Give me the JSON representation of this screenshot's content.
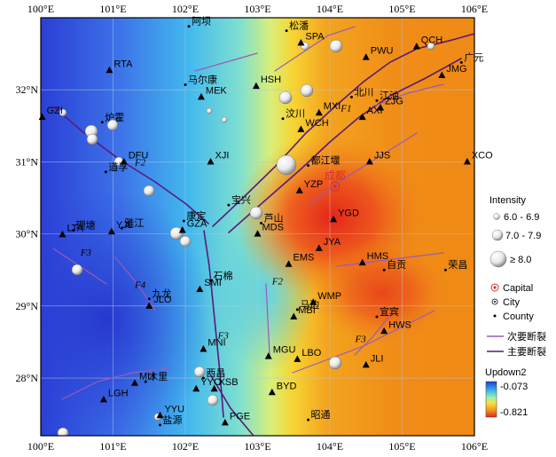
{
  "colors": {
    "fault_primary": "#5a1a7a",
    "fault_secondary": "#9a5ab8",
    "station_marker": "#000000",
    "capital_marker": "#d9302b",
    "scale_top": "#1f3cd9",
    "scale_bottom": "#e0281c"
  },
  "axes": {
    "x_ticks": [
      "100°E",
      "101°E",
      "102°E",
      "103°E",
      "104°E",
      "105°E",
      "106°E"
    ],
    "y_ticks": [
      "32°N",
      "31°N",
      "30°N",
      "29°N",
      "28°N"
    ]
  },
  "stations": [
    {
      "code": "QCH",
      "lon": 105.2,
      "lat": 32.6
    },
    {
      "code": "SPA",
      "lon": 103.6,
      "lat": 32.65
    },
    {
      "code": "PWU",
      "lon": 104.5,
      "lat": 32.45
    },
    {
      "code": "JMG",
      "lon": 105.55,
      "lat": 32.2
    },
    {
      "code": "RTA",
      "lon": 100.95,
      "lat": 32.27
    },
    {
      "code": "HSH",
      "lon": 102.98,
      "lat": 32.05
    },
    {
      "code": "MEK",
      "lon": 102.22,
      "lat": 31.9
    },
    {
      "code": "MXI",
      "lon": 103.85,
      "lat": 31.68
    },
    {
      "code": "ZJG",
      "lon": 104.7,
      "lat": 31.75
    },
    {
      "code": "GZI",
      "lon": 100.02,
      "lat": 31.62
    },
    {
      "code": "AXI",
      "lon": 104.45,
      "lat": 31.62
    },
    {
      "code": "WCH",
      "lon": 103.6,
      "lat": 31.45
    },
    {
      "code": "JJS",
      "lon": 104.55,
      "lat": 31.0
    },
    {
      "code": "XCO",
      "lon": 105.9,
      "lat": 31.0
    },
    {
      "code": "DFU",
      "lon": 101.15,
      "lat": 31.0
    },
    {
      "code": "XJI",
      "lon": 102.35,
      "lat": 31.0
    },
    {
      "code": "YZP",
      "lon": 103.58,
      "lat": 30.6
    },
    {
      "code": "YGD",
      "lon": 104.05,
      "lat": 30.2
    },
    {
      "code": "LTA",
      "lon": 100.3,
      "lat": 29.99
    },
    {
      "code": "YJL",
      "lon": 100.98,
      "lat": 30.03
    },
    {
      "code": "GZA",
      "lon": 101.96,
      "lat": 30.05
    },
    {
      "code": "MDS",
      "lon": 103.0,
      "lat": 30.0
    },
    {
      "code": "JYA",
      "lon": 103.85,
      "lat": 29.8
    },
    {
      "code": "EMS",
      "lon": 103.43,
      "lat": 29.58
    },
    {
      "code": "HMS",
      "lon": 104.45,
      "lat": 29.6
    },
    {
      "code": "JLO",
      "lon": 101.5,
      "lat": 29.0
    },
    {
      "code": "SMI",
      "lon": 102.2,
      "lat": 29.23
    },
    {
      "code": "WMP",
      "lon": 103.77,
      "lat": 29.05
    },
    {
      "code": "MBI",
      "lon": 103.5,
      "lat": 28.85
    },
    {
      "code": "HWS",
      "lon": 104.75,
      "lat": 28.65
    },
    {
      "code": "MNI",
      "lon": 102.25,
      "lat": 28.4
    },
    {
      "code": "MGU",
      "lon": 103.15,
      "lat": 28.3
    },
    {
      "code": "LBO",
      "lon": 103.55,
      "lat": 28.26
    },
    {
      "code": "JLI",
      "lon": 104.5,
      "lat": 28.18
    },
    {
      "code": "MLI",
      "lon": 101.3,
      "lat": 27.93
    },
    {
      "code": "YYO",
      "lon": 102.15,
      "lat": 27.85
    },
    {
      "code": "XSB",
      "lon": 102.4,
      "lat": 27.85
    },
    {
      "code": "LGH",
      "lon": 100.87,
      "lat": 27.7
    },
    {
      "code": "BYD",
      "lon": 103.2,
      "lat": 27.8
    },
    {
      "code": "YYU",
      "lon": 101.65,
      "lat": 27.48
    },
    {
      "code": "PGE",
      "lon": 102.55,
      "lat": 27.38
    }
  ],
  "places": [
    {
      "name": "阿坝",
      "lon": 102.05,
      "lat": 32.88
    },
    {
      "name": "松潘",
      "lon": 103.4,
      "lat": 32.82
    },
    {
      "name": "广元",
      "lon": 105.82,
      "lat": 32.38
    },
    {
      "name": "马尔康",
      "lon": 102.0,
      "lat": 32.07
    },
    {
      "name": "北川",
      "lon": 104.3,
      "lat": 31.9
    },
    {
      "name": "江油",
      "lon": 104.65,
      "lat": 31.85
    },
    {
      "name": "炉霍",
      "lon": 100.85,
      "lat": 31.55
    },
    {
      "name": "汶川",
      "lon": 103.35,
      "lat": 31.6
    },
    {
      "name": "道孚",
      "lon": 100.9,
      "lat": 30.86
    },
    {
      "name": "都江堰",
      "lon": 103.7,
      "lat": 30.95
    },
    {
      "name": "宝兴",
      "lon": 102.6,
      "lat": 30.4
    },
    {
      "name": "康定",
      "lon": 101.98,
      "lat": 30.18
    },
    {
      "name": "理塘",
      "lon": 100.45,
      "lat": 30.05
    },
    {
      "name": "雅江",
      "lon": 101.12,
      "lat": 30.08
    },
    {
      "name": "芦山",
      "lon": 103.05,
      "lat": 30.15
    },
    {
      "name": "九龙",
      "lon": 101.5,
      "lat": 29.1
    },
    {
      "name": "石棉",
      "lon": 102.35,
      "lat": 29.35
    },
    {
      "name": "自贡",
      "lon": 104.75,
      "lat": 29.5
    },
    {
      "name": "荣昌",
      "lon": 105.6,
      "lat": 29.5
    },
    {
      "name": "马边",
      "lon": 103.55,
      "lat": 28.95
    },
    {
      "name": "宜宾",
      "lon": 104.65,
      "lat": 28.85
    },
    {
      "name": "木里",
      "lon": 101.45,
      "lat": 27.95
    },
    {
      "name": "西昌",
      "lon": 102.25,
      "lat": 28.0
    },
    {
      "name": "昭通",
      "lon": 103.7,
      "lat": 27.42
    },
    {
      "name": "盐源",
      "lon": 101.65,
      "lat": 27.35
    }
  ],
  "capital": {
    "name": "成都",
    "lon": 104.07,
    "lat": 30.66
  },
  "faults_labels": [
    {
      "label": "F1",
      "lon": 104.15,
      "lat": 31.7
    },
    {
      "label": "F2",
      "lon": 101.3,
      "lat": 30.95
    },
    {
      "label": "F3",
      "lon": 100.55,
      "lat": 29.7
    },
    {
      "label": "F4",
      "lon": 101.3,
      "lat": 29.25
    },
    {
      "label": "F2",
      "lon": 103.2,
      "lat": 29.3
    },
    {
      "label": "F3",
      "lon": 102.45,
      "lat": 28.55
    },
    {
      "label": "F3",
      "lon": 104.35,
      "lat": 28.5
    }
  ],
  "legend": {
    "intensity_title": "Intensity",
    "intensity_classes": [
      "6.0 - 6.9",
      "7.0 - 7.9",
      "≥  8.0"
    ],
    "capital_label": "Capital",
    "city_label": "City",
    "county_label": "County",
    "secondary_fault": "次要断裂",
    "primary_fault": "主要断裂",
    "scale_title": "Updown2",
    "scale_max": "-0.073",
    "scale_min": "-0.821"
  }
}
